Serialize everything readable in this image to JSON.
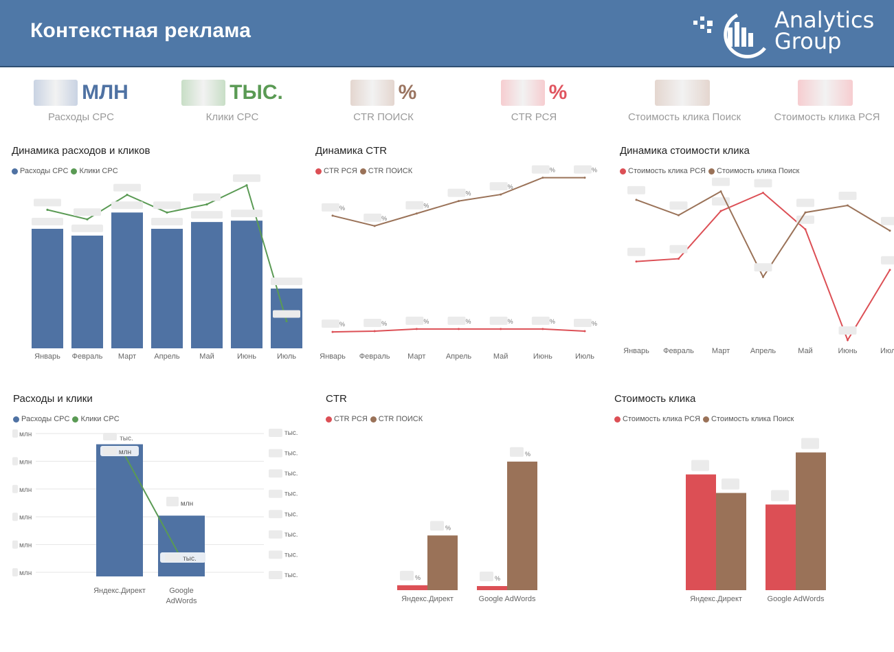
{
  "header": {
    "title": "Контекстная реклама",
    "logo_line1": "Analytics",
    "logo_line2": "Group"
  },
  "kpis": [
    {
      "unit": "МЛН",
      "label": "Расходы CPC",
      "color": "#4f72a3",
      "blur": "#c9d3e3"
    },
    {
      "unit": "ТЫС.",
      "label": "Клики CPC",
      "color": "#5a9a54",
      "blur": "#c8dec6"
    },
    {
      "unit": "%",
      "label": "CTR ПОИСК",
      "color": "#9a7460",
      "blur": "#e4d6cf"
    },
    {
      "unit": "%",
      "label": "CTR РСЯ",
      "color": "#e05560",
      "blur": "#f6cdd0"
    },
    {
      "unit": "",
      "label": "Стоимость клика Поиск",
      "color": "#9a7460",
      "blur": "#e4d6cf"
    },
    {
      "unit": "",
      "label": "Стоимость клика РСЯ",
      "color": "#e05560",
      "blur": "#f6cdd0"
    }
  ],
  "colors": {
    "spend": "#4f72a3",
    "clicks": "#5a9a54",
    "rsya": "#dc4f55",
    "search": "#9a7258"
  },
  "months": [
    "Январь",
    "Февраль",
    "Март",
    "Апрель",
    "Май",
    "Июнь",
    "Июль"
  ],
  "units": {
    "pct": "%",
    "mln": "млн",
    "ths": "тыс."
  },
  "chart_data": [
    {
      "id": "spend_clicks_dynamics",
      "type": "bar",
      "title": "Динамика расходов и кликов",
      "legend": [
        "Расходы CPC",
        "Клики CPC"
      ],
      "categories": [
        "Январь",
        "Февраль",
        "Март",
        "Апрель",
        "Май",
        "Июнь",
        "Июль"
      ],
      "series": [
        {
          "name": "Расходы CPC",
          "kind": "bar",
          "values": [
            0.88,
            0.83,
            1.0,
            0.88,
            0.93,
            0.94,
            0.44
          ]
        },
        {
          "name": "Клики CPC",
          "kind": "line",
          "values": [
            1.02,
            0.95,
            1.13,
            1.0,
            1.06,
            1.2,
            0.2
          ]
        }
      ],
      "ylim": [
        0,
        1.3
      ]
    },
    {
      "id": "ctr_dynamics",
      "type": "line",
      "title": "Динамика CTR",
      "legend": [
        "CTR РСЯ",
        "CTR ПОИСК"
      ],
      "categories": [
        "Январь",
        "Февраль",
        "Март",
        "Апрель",
        "Май",
        "Июнь",
        "Июль"
      ],
      "series": [
        {
          "name": "CTR РСЯ",
          "values": [
            0.14,
            0.15,
            0.18,
            0.18,
            0.18,
            0.18,
            0.15
          ]
        },
        {
          "name": "CTR ПОИСК",
          "values": [
            1.73,
            1.59,
            1.76,
            1.93,
            2.02,
            2.25,
            2.25
          ]
        }
      ],
      "ylim": [
        0,
        2.5
      ]
    },
    {
      "id": "cpc_dynamics",
      "type": "line",
      "title": "Динамика стоимости клика",
      "legend": [
        "Стоимость клика РСЯ",
        "Стоимость клика Поиск"
      ],
      "categories": [
        "Январь",
        "Февраль",
        "Март",
        "Апрель",
        "Май",
        "Июнь",
        "Июль"
      ],
      "series": [
        {
          "name": "Стоимость клика РСЯ",
          "values": [
            0.56,
            0.58,
            0.92,
            1.05,
            0.79,
            0.0,
            0.5
          ]
        },
        {
          "name": "Стоимость клика Поиск",
          "values": [
            1.0,
            0.89,
            1.06,
            0.45,
            0.91,
            0.96,
            0.78
          ]
        }
      ],
      "ylim": [
        0,
        1.2
      ]
    },
    {
      "id": "spend_clicks_by_system",
      "type": "bar",
      "title": "Расходы и клики",
      "legend": [
        "Расходы CPC",
        "Клики CPC"
      ],
      "categories": [
        "Яндекс.Директ",
        "Google AdWords"
      ],
      "series": [
        {
          "name": "Расходы CPC",
          "kind": "bar",
          "values": [
            1.0,
            0.46
          ]
        },
        {
          "name": "Клики CPC",
          "kind": "line",
          "values": [
            1.0,
            0.06
          ]
        }
      ],
      "ylim": [
        0,
        1.05
      ],
      "left_ticks": [
        "млн",
        "млн",
        "млн",
        "млн",
        "млн",
        "млн"
      ],
      "right_ticks": [
        "тыс.",
        "тыс.",
        "тыс.",
        "тыс.",
        "тыс.",
        "тыс.",
        "тыс.",
        "тыс."
      ]
    },
    {
      "id": "ctr_by_system",
      "type": "bar",
      "title": "CTR",
      "legend": [
        "CTR РСЯ",
        "CTR ПОИСК"
      ],
      "categories": [
        "Яндекс.Директ",
        "Google AdWords"
      ],
      "series": [
        {
          "name": "CTR РСЯ",
          "values": [
            0.18,
            0.15
          ]
        },
        {
          "name": "CTR ПОИСК",
          "values": [
            2.0,
            4.7
          ]
        }
      ],
      "ylim": [
        0,
        5.5
      ]
    },
    {
      "id": "cpc_by_system",
      "type": "bar",
      "title": "Стоимость клика",
      "legend": [
        "Стоимость клика РСЯ",
        "Стоимость клика Поиск"
      ],
      "categories": [
        "Яндекс.Директ",
        "Google AdWords"
      ],
      "series": [
        {
          "name": "Стоимость клика РСЯ",
          "values": [
            1.0,
            0.74
          ]
        },
        {
          "name": "Стоимость клика Поиск",
          "values": [
            0.84,
            1.19
          ]
        }
      ],
      "ylim": [
        0,
        1.3
      ]
    }
  ]
}
